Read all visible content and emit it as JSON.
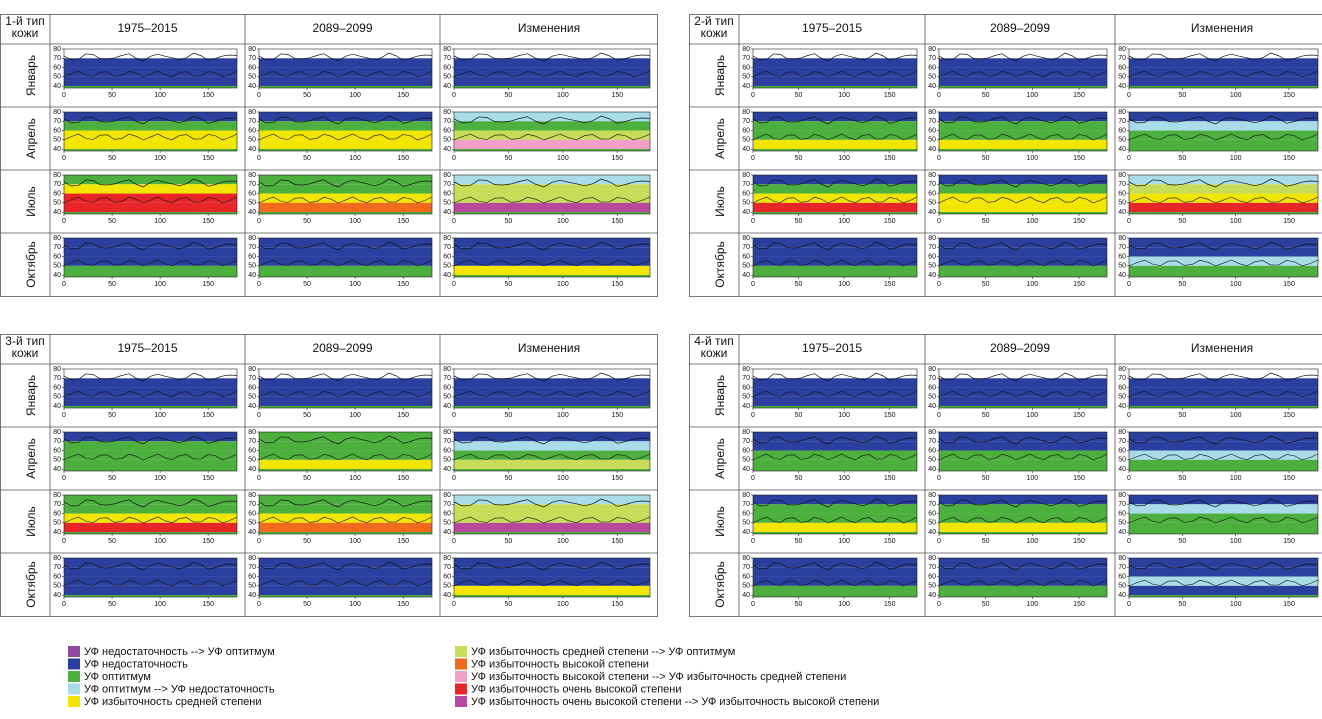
{
  "panels": [
    {
      "corner": [
        "1-й тип",
        "кожи"
      ],
      "columns": [
        "1975–2015",
        "2089–2099",
        "Изменения"
      ],
      "rows": [
        "Январь",
        "Апрель",
        "Июль",
        "Октябрь"
      ]
    },
    {
      "corner": [
        "2-й тип",
        "кожи"
      ],
      "columns": [
        "1975–2015",
        "2089–2099",
        "Изменения"
      ],
      "rows": [
        "Январь",
        "Апрель",
        "Июль",
        "Октябрь"
      ]
    },
    {
      "corner": [
        "3-й тип",
        "кожи"
      ],
      "columns": [
        "1975–2015",
        "2089–2099",
        "Изменения"
      ],
      "rows": [
        "Январь",
        "Апрель",
        "Июль",
        "Октябрь"
      ]
    },
    {
      "corner": [
        "4-й тип",
        "кожи"
      ],
      "columns": [
        "1975–2015",
        "2089–2099",
        "Изменения"
      ],
      "rows": [
        "Январь",
        "Апрель",
        "Июль",
        "Октябрь"
      ]
    }
  ],
  "map_axes": {
    "yticks": [
      80,
      70,
      60,
      50,
      40
    ],
    "xticks": [
      0,
      50,
      100,
      150
    ]
  },
  "legend": [
    {
      "label": "УФ недостаточность --> УФ оптитмум",
      "color": "#8e4a9e"
    },
    {
      "label": "УФ недостаточность",
      "color": "#2b3f9e"
    },
    {
      "label": "УФ оптитмум",
      "color": "#4caf3e"
    },
    {
      "label": "УФ оптитмум --> УФ недостаточность",
      "color": "#a8dce8"
    },
    {
      "label": "УФ избыточность средней степени",
      "color": "#f2e600"
    },
    {
      "label": "УФ избыточность средней степени --> УФ оптитмум",
      "color": "#c8dc5a"
    },
    {
      "label": "УФ избыточность высокой степени",
      "color": "#f06a1e"
    },
    {
      "label": "УФ избыточность высокой степени --> УФ избыточность средней степени",
      "color": "#f2a0c8"
    },
    {
      "label": "УФ избыточность очень высокой степени",
      "color": "#e8262a"
    },
    {
      "label": "УФ избыточность очень высокой степени --> УФ избыточность высокой степени",
      "color": "#b8489e"
    }
  ]
}
